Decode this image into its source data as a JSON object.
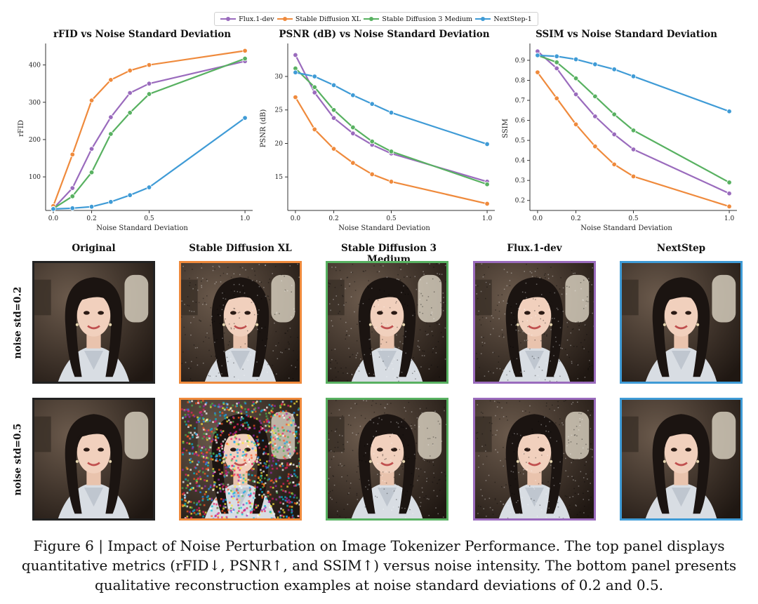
{
  "legend": {
    "items": [
      {
        "label": "Flux.1-dev",
        "color": "#9a6bbd"
      },
      {
        "label": "Stable Diffusion XL",
        "color": "#ef8a3c"
      },
      {
        "label": "Stable Diffusion 3 Medium",
        "color": "#58b161"
      },
      {
        "label": "NextStep-1",
        "color": "#3f9bd6"
      }
    ]
  },
  "chart_data": [
    {
      "type": "line",
      "title": "rFID vs Noise Standard Deviation",
      "xlabel": "Noise Standard Deviation",
      "ylabel": "rFID",
      "x": [
        0.0,
        0.1,
        0.2,
        0.3,
        0.4,
        0.5,
        1.0
      ],
      "xticks": [
        0.0,
        0.2,
        0.5,
        1.0
      ],
      "yticks": [
        100,
        200,
        300,
        400
      ],
      "xlim": [
        -0.04,
        1.04
      ],
      "ylim": [
        10,
        450
      ],
      "series": [
        {
          "name": "Flux.1-dev",
          "values": [
            15,
            70,
            175,
            260,
            325,
            350,
            410
          ]
        },
        {
          "name": "Stable Diffusion XL",
          "values": [
            22,
            160,
            305,
            360,
            385,
            400,
            438
          ]
        },
        {
          "name": "Stable Diffusion 3 Medium",
          "values": [
            15,
            48,
            112,
            215,
            272,
            322,
            417
          ]
        },
        {
          "name": "NextStep-1",
          "values": [
            14,
            16,
            20,
            33,
            51,
            72,
            258
          ]
        }
      ]
    },
    {
      "type": "line",
      "title": "PSNR (dB) vs Noise Standard Deviation",
      "xlabel": "Noise Standard Deviation",
      "ylabel": "PSNR (dB)",
      "x": [
        0.0,
        0.1,
        0.2,
        0.3,
        0.4,
        0.5,
        1.0
      ],
      "xticks": [
        0.0,
        0.2,
        0.5,
        1.0
      ],
      "yticks": [
        15,
        20,
        25,
        30
      ],
      "xlim": [
        -0.04,
        1.04
      ],
      "ylim": [
        10,
        34.5
      ],
      "series": [
        {
          "name": "Flux.1-dev",
          "values": [
            33.2,
            27.6,
            23.8,
            21.5,
            19.8,
            18.5,
            14.3
          ]
        },
        {
          "name": "Stable Diffusion XL",
          "values": [
            26.9,
            22.1,
            19.2,
            17.1,
            15.4,
            14.3,
            11.0
          ]
        },
        {
          "name": "Stable Diffusion 3 Medium",
          "values": [
            31.2,
            28.4,
            25.0,
            22.4,
            20.3,
            18.8,
            13.9
          ]
        },
        {
          "name": "NextStep-1",
          "values": [
            30.6,
            30.0,
            28.7,
            27.2,
            25.9,
            24.6,
            19.9
          ]
        }
      ]
    },
    {
      "type": "line",
      "title": "SSIM vs Noise Standard Deviation",
      "xlabel": "Noise Standard Deviation",
      "ylabel": "SSIM",
      "x": [
        0.0,
        0.1,
        0.2,
        0.3,
        0.4,
        0.5,
        1.0
      ],
      "xticks": [
        0.0,
        0.2,
        0.5,
        1.0
      ],
      "yticks": [
        0.2,
        0.3,
        0.4,
        0.5,
        0.6,
        0.7,
        0.8,
        0.9
      ],
      "xlim": [
        -0.04,
        1.04
      ],
      "ylim": [
        0.15,
        0.97
      ],
      "series": [
        {
          "name": "Flux.1-dev",
          "values": [
            0.945,
            0.86,
            0.73,
            0.62,
            0.53,
            0.455,
            0.235
          ]
        },
        {
          "name": "Stable Diffusion XL",
          "values": [
            0.84,
            0.71,
            0.58,
            0.47,
            0.38,
            0.32,
            0.17
          ]
        },
        {
          "name": "Stable Diffusion 3 Medium",
          "values": [
            0.925,
            0.89,
            0.81,
            0.72,
            0.63,
            0.55,
            0.29
          ]
        },
        {
          "name": "NextStep-1",
          "values": [
            0.925,
            0.92,
            0.905,
            0.88,
            0.855,
            0.82,
            0.645
          ]
        }
      ]
    }
  ],
  "figure": {
    "columns": [
      {
        "title": "Original",
        "border": "#222222",
        "noise": 0
      },
      {
        "title": "Stable Diffusion XL",
        "border": "#ef8a3c",
        "noise": 2
      },
      {
        "title": "Stable Diffusion 3 Medium",
        "border": "#58b161",
        "noise": 1
      },
      {
        "title": "Flux.1-dev",
        "border": "#9a6bbd",
        "noise": 1
      },
      {
        "title": "NextStep",
        "border": "#3f9bd6",
        "noise": 0
      }
    ],
    "rows": [
      {
        "label": "noise std=0.2"
      },
      {
        "label": "noise std=0.5"
      }
    ]
  },
  "caption": {
    "line1": "Figure 6 | Impact of Noise Perturbation on Image Tokenizer Performance. The top panel displays",
    "line2": "quantitative metrics (rFID↓, PSNR↑, and SSIM↑) versus noise intensity. The bottom panel presents",
    "line3": "qualitative reconstruction examples at noise standard deviations of 0.2 and 0.5."
  }
}
